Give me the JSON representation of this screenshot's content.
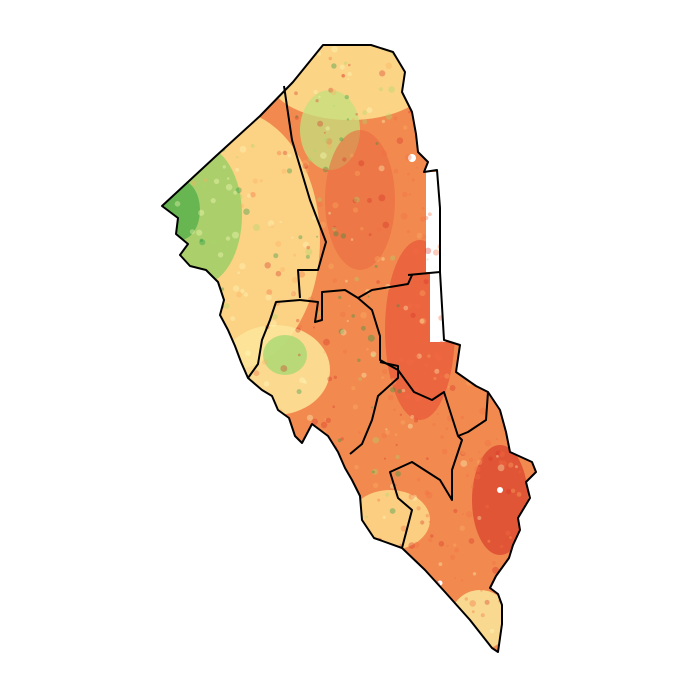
{
  "map": {
    "colors": {
      "background": "#ffffff",
      "boundary": "#000000",
      "no_data": "#ffffff",
      "ramp": [
        "#1a9641",
        "#a6d96a",
        "#ffffbf",
        "#fdae61",
        "#f46d43",
        "#d73027"
      ]
    }
  }
}
